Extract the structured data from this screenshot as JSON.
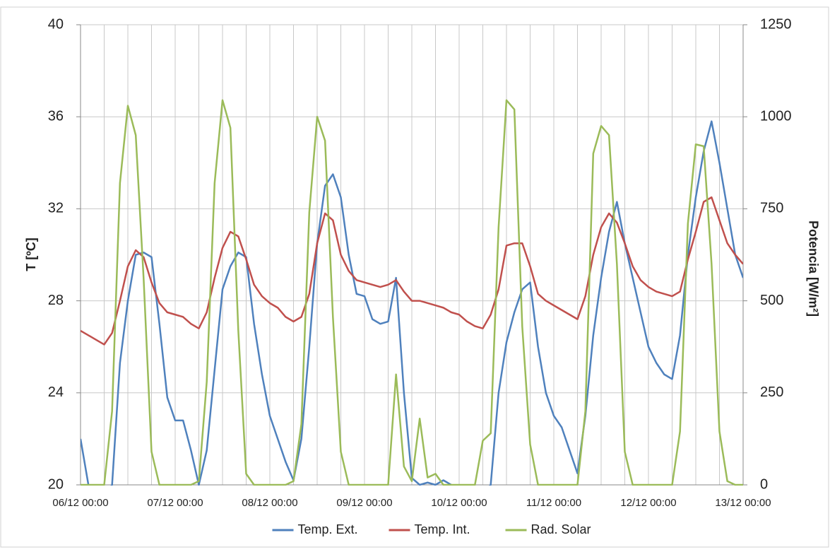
{
  "chart_data": {
    "type": "line",
    "y_label": "T [ºC]",
    "y2_label": "Potencia [W/m²]",
    "x": [
      0,
      2,
      4,
      6,
      8,
      10,
      12,
      14,
      16,
      18,
      20,
      22,
      24,
      26,
      28,
      30,
      32,
      34,
      36,
      38,
      40,
      42,
      44,
      46,
      48,
      50,
      52,
      54,
      56,
      58,
      60,
      62,
      64,
      66,
      68,
      70,
      72,
      74,
      76,
      78,
      80,
      82,
      84,
      86,
      88,
      90,
      92,
      94,
      96,
      98,
      100,
      102,
      104,
      106,
      108,
      110,
      112,
      114,
      116,
      118,
      120,
      122,
      124,
      126,
      128,
      130,
      132,
      134,
      136,
      138,
      140,
      142,
      144,
      146,
      148,
      150,
      152,
      154,
      156,
      158,
      160,
      162,
      164,
      166,
      168
    ],
    "xlim": [
      0,
      168
    ],
    "xticks": [
      {
        "value": 0,
        "label": "06/12 00:00"
      },
      {
        "value": 6,
        "label": null
      },
      {
        "value": 12,
        "label": null
      },
      {
        "value": 18,
        "label": null
      },
      {
        "value": 24,
        "label": "07/12 00:00"
      },
      {
        "value": 30,
        "label": null
      },
      {
        "value": 36,
        "label": null
      },
      {
        "value": 42,
        "label": null
      },
      {
        "value": 48,
        "label": "08/12 00:00"
      },
      {
        "value": 54,
        "label": null
      },
      {
        "value": 60,
        "label": null
      },
      {
        "value": 66,
        "label": null
      },
      {
        "value": 72,
        "label": "09/12 00:00"
      },
      {
        "value": 78,
        "label": null
      },
      {
        "value": 84,
        "label": null
      },
      {
        "value": 90,
        "label": null
      },
      {
        "value": 96,
        "label": "10/12 00:00"
      },
      {
        "value": 102,
        "label": null
      },
      {
        "value": 108,
        "label": null
      },
      {
        "value": 114,
        "label": null
      },
      {
        "value": 120,
        "label": "11/12 00:00"
      },
      {
        "value": 126,
        "label": null
      },
      {
        "value": 132,
        "label": null
      },
      {
        "value": 138,
        "label": null
      },
      {
        "value": 144,
        "label": "12/12 00:00"
      },
      {
        "value": 150,
        "label": null
      },
      {
        "value": 156,
        "label": null
      },
      {
        "value": 162,
        "label": null
      },
      {
        "value": 168,
        "label": "13/12 00:00"
      }
    ],
    "ylim": [
      20,
      40
    ],
    "yticks": [
      20,
      24,
      28,
      32,
      36,
      40
    ],
    "y2lim": [
      0,
      1250
    ],
    "y2ticks": [
      0,
      250,
      500,
      750,
      1000,
      1250
    ],
    "grid": true,
    "legend": "bottom",
    "series": [
      {
        "name": "Temp. Ext.",
        "color": "#4f81bd",
        "values": [
          22,
          20.0,
          19.5,
          19.5,
          20.0,
          25.3,
          28.0,
          30.0,
          30.1,
          29.9,
          27.0,
          23.8,
          22.8,
          22.8,
          21.5,
          20.0,
          21.5,
          25.0,
          28.5,
          29.5,
          30.1,
          29.9,
          27.0,
          24.8,
          23.0,
          22.0,
          21.0,
          20.2,
          22.0,
          26.0,
          30.5,
          33.0,
          33.5,
          32.5,
          30.0,
          28.3,
          28.2,
          27.2,
          27.0,
          27.1,
          29.0,
          24.0,
          20.3,
          20.0,
          20.1,
          20.0,
          20.2,
          20.0,
          19.6,
          19.5,
          19.5,
          19.6,
          20.0,
          24.0,
          26.2,
          27.5,
          28.5,
          28.8,
          26.0,
          24.0,
          23.0,
          22.5,
          21.5,
          20.5,
          23.0,
          26.5,
          29.0,
          31.0,
          32.3,
          30.5,
          29.0,
          27.5,
          26.0,
          25.3,
          24.8,
          24.6,
          26.5,
          30.0,
          32.5,
          34.5,
          35.8,
          34.0,
          32.0,
          30.0,
          29.0
        ]
      },
      {
        "name": "Temp. Int.",
        "color": "#c0504d",
        "values": [
          26.7,
          26.5,
          26.3,
          26.1,
          26.6,
          28.0,
          29.5,
          30.2,
          29.9,
          28.8,
          27.9,
          27.5,
          27.4,
          27.3,
          27.0,
          26.8,
          27.5,
          29.0,
          30.3,
          31.0,
          30.8,
          29.8,
          28.7,
          28.2,
          27.9,
          27.7,
          27.3,
          27.1,
          27.3,
          28.3,
          30.5,
          31.8,
          31.5,
          30.0,
          29.3,
          28.9,
          28.8,
          28.7,
          28.6,
          28.7,
          28.9,
          28.4,
          28.0,
          28.0,
          27.9,
          27.8,
          27.7,
          27.5,
          27.4,
          27.1,
          26.9,
          26.8,
          27.4,
          28.5,
          30.4,
          30.5,
          30.5,
          29.5,
          28.3,
          28.0,
          27.8,
          27.6,
          27.4,
          27.2,
          28.2,
          30.0,
          31.2,
          31.8,
          31.4,
          30.5,
          29.5,
          28.9,
          28.6,
          28.4,
          28.3,
          28.2,
          28.4,
          29.8,
          31.0,
          32.3,
          32.5,
          31.5,
          30.5,
          30.0,
          29.6
        ]
      },
      {
        "name": "Rad. Solar",
        "color": "#9bbb59",
        "axis": "y2",
        "values": [
          0,
          0,
          0,
          0,
          200,
          820,
          1030,
          950,
          560,
          90,
          0,
          0,
          0,
          0,
          0,
          10,
          280,
          820,
          1045,
          970,
          420,
          30,
          0,
          0,
          0,
          0,
          0,
          10,
          165,
          740,
          1000,
          935,
          455,
          90,
          0,
          0,
          0,
          0,
          0,
          0,
          300,
          50,
          10,
          180,
          20,
          30,
          0,
          0,
          0,
          0,
          0,
          120,
          140,
          700,
          1045,
          1020,
          430,
          110,
          0,
          0,
          0,
          0,
          0,
          0,
          200,
          900,
          975,
          950,
          600,
          90,
          0,
          0,
          0,
          0,
          0,
          0,
          145,
          710,
          925,
          920,
          600,
          145,
          10,
          0,
          0
        ]
      }
    ]
  }
}
